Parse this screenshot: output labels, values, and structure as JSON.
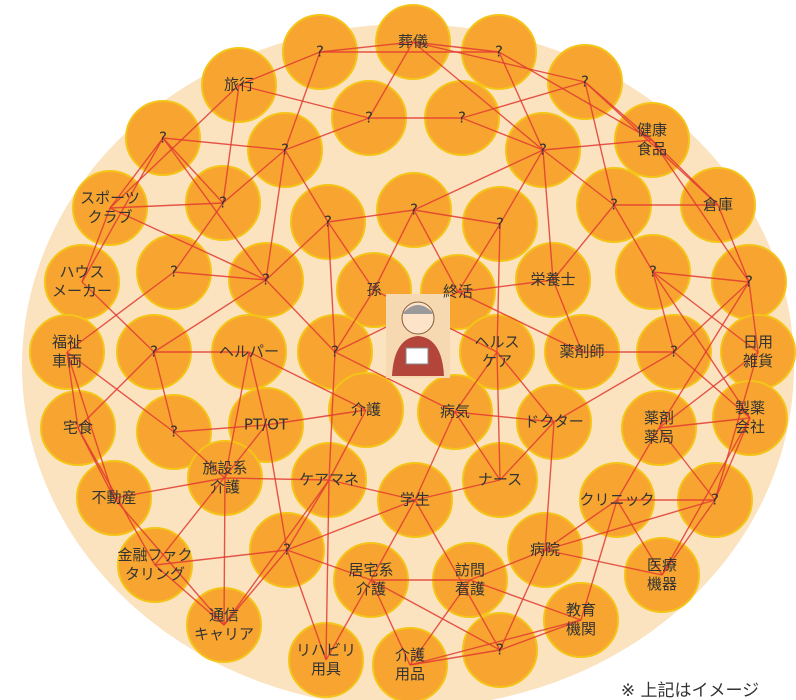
{
  "nodes": [
    {
      "lines": [
        "?"
      ]
    },
    {
      "lines": [
        "葬儀"
      ]
    },
    {
      "lines": [
        "?"
      ]
    },
    {
      "lines": [
        "?"
      ]
    },
    {
      "lines": [
        "旅行"
      ]
    },
    {
      "lines": [
        "?"
      ]
    },
    {
      "lines": [
        "?"
      ]
    },
    {
      "lines": [
        "?"
      ]
    },
    {
      "lines": [
        "健康",
        "食品"
      ]
    },
    {
      "lines": [
        "?"
      ]
    },
    {
      "lines": [
        "?"
      ]
    },
    {
      "lines": [
        "スポーツ",
        "クラブ"
      ]
    },
    {
      "lines": [
        "?"
      ]
    },
    {
      "lines": [
        "?"
      ]
    },
    {
      "lines": [
        "?"
      ]
    },
    {
      "lines": [
        "?"
      ]
    },
    {
      "lines": [
        "?"
      ]
    },
    {
      "lines": [
        "倉庫"
      ]
    },
    {
      "lines": [
        "ハウス",
        "メーカー"
      ]
    },
    {
      "lines": [
        "?"
      ]
    },
    {
      "lines": [
        "?"
      ]
    },
    {
      "lines": [
        "孫"
      ]
    },
    {
      "lines": [
        "終活"
      ]
    },
    {
      "lines": [
        "栄養士"
      ]
    },
    {
      "lines": [
        "?"
      ]
    },
    {
      "lines": [
        "?"
      ]
    },
    {
      "lines": [
        "福祉",
        "車両"
      ]
    },
    {
      "lines": [
        "?"
      ]
    },
    {
      "lines": [
        "ヘルパー"
      ]
    },
    {
      "lines": [
        "?"
      ]
    },
    {
      "lines": [
        "ヘルス",
        "ケア"
      ]
    },
    {
      "lines": [
        "薬剤師"
      ]
    },
    {
      "lines": [
        "?"
      ]
    },
    {
      "lines": [
        "日用",
        "雑貨"
      ]
    },
    {
      "lines": [
        "宅食"
      ]
    },
    {
      "lines": [
        "?"
      ]
    },
    {
      "lines": [
        "PT/OT"
      ]
    },
    {
      "lines": [
        "介護"
      ]
    },
    {
      "lines": [
        "病気"
      ]
    },
    {
      "lines": [
        "ドクター"
      ]
    },
    {
      "lines": [
        "薬剤",
        "薬局"
      ]
    },
    {
      "lines": [
        "製薬",
        "会社"
      ]
    },
    {
      "lines": [
        "不動産"
      ]
    },
    {
      "lines": [
        "施設系",
        "介護"
      ]
    },
    {
      "lines": [
        "ケアマネ"
      ]
    },
    {
      "lines": [
        "学生"
      ]
    },
    {
      "lines": [
        "ナース"
      ]
    },
    {
      "lines": [
        "クリニック"
      ]
    },
    {
      "lines": [
        "?"
      ]
    },
    {
      "lines": [
        "金融ファク",
        "タリング"
      ]
    },
    {
      "lines": [
        "?"
      ]
    },
    {
      "lines": [
        "居宅系",
        "介護"
      ]
    },
    {
      "lines": [
        "訪問",
        "看護"
      ]
    },
    {
      "lines": [
        "病院"
      ]
    },
    {
      "lines": [
        "医療",
        "機器"
      ]
    },
    {
      "lines": [
        "通信",
        "キャリア"
      ]
    },
    {
      "lines": [
        "教育",
        "機関"
      ]
    },
    {
      "lines": [
        "リハビリ",
        "用具"
      ]
    },
    {
      "lines": [
        "介護",
        "用品"
      ]
    },
    {
      "lines": [
        "?"
      ]
    }
  ],
  "note": "※ 上記はイメージ"
}
